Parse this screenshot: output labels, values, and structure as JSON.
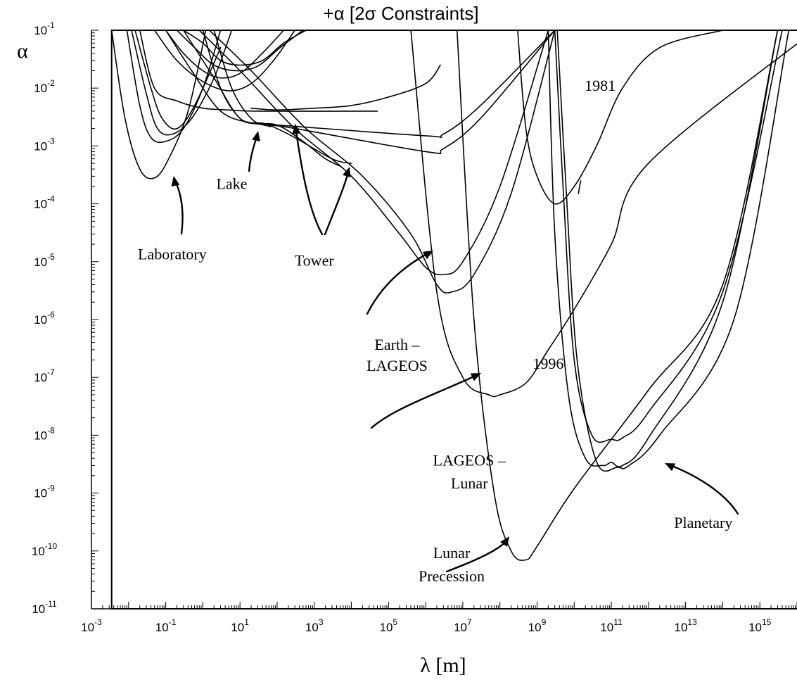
{
  "chart_data": {
    "type": "line",
    "title": "+α [2σ Constraints]",
    "xlabel": "λ [m]",
    "ylabel": "α",
    "x_scale": "log",
    "y_scale": "log",
    "xlim": [
      0.001,
      1e+16
    ],
    "ylim": [
      1e-11,
      0.1
    ],
    "grid": false,
    "x_ticks": [
      {
        "base": "10",
        "exp": "-3"
      },
      {
        "base": "10",
        "exp": "-1"
      },
      {
        "base": "10",
        "exp": "1"
      },
      {
        "base": "10",
        "exp": "3"
      },
      {
        "base": "10",
        "exp": "5"
      },
      {
        "base": "10",
        "exp": "7"
      },
      {
        "base": "10",
        "exp": "9"
      },
      {
        "base": "10",
        "exp": "11"
      },
      {
        "base": "10",
        "exp": "13"
      },
      {
        "base": "10",
        "exp": "15"
      }
    ],
    "y_ticks": [
      {
        "base": "10",
        "exp": "-1"
      },
      {
        "base": "10",
        "exp": "-2"
      },
      {
        "base": "10",
        "exp": "-3"
      },
      {
        "base": "10",
        "exp": "-4"
      },
      {
        "base": "10",
        "exp": "-5"
      },
      {
        "base": "10",
        "exp": "-6"
      },
      {
        "base": "10",
        "exp": "-7"
      },
      {
        "base": "10",
        "exp": "-8"
      },
      {
        "base": "10",
        "exp": "-9"
      },
      {
        "base": "10",
        "exp": "-10"
      },
      {
        "base": "10",
        "exp": "-11"
      }
    ],
    "series": [
      {
        "x": [
          0.0035,
          0.008,
          0.02,
          0.05,
          0.12,
          0.4,
          1.2
        ],
        "y": [
          0.1,
          0.003,
          0.0004,
          0.00028,
          0.0006,
          0.004,
          0.1
        ]
      },
      {
        "x": [
          0.009,
          0.02,
          0.04,
          0.1,
          0.3,
          1,
          3
        ],
        "y": [
          0.1,
          0.005,
          0.0014,
          0.0012,
          0.002,
          0.01,
          0.1
        ]
      },
      {
        "x": [
          0.012,
          0.03,
          0.06,
          0.15,
          0.5,
          2,
          6
        ],
        "y": [
          0.1,
          0.008,
          0.002,
          0.0016,
          0.003,
          0.015,
          0.1
        ]
      },
      {
        "x": [
          0.015,
          0.04,
          0.08,
          0.2,
          0.6,
          3
        ],
        "y": [
          0.1,
          0.01,
          0.003,
          0.002,
          0.005,
          0.05
        ]
      },
      {
        "x": [
          0.02,
          0.05,
          0.2,
          1,
          5,
          30,
          50000
        ],
        "y": [
          0.1,
          0.01,
          0.006,
          0.0045,
          0.0042,
          0.004,
          0.004
        ]
      },
      {
        "x": [
          0.05,
          0.2,
          1,
          5,
          20,
          80,
          300
        ],
        "y": [
          0.1,
          0.03,
          0.013,
          0.009,
          0.012,
          0.03,
          0.1
        ]
      },
      {
        "x": [
          0.1,
          0.3,
          1,
          3,
          10,
          40,
          150
        ],
        "y": [
          0.1,
          0.04,
          0.02,
          0.015,
          0.018,
          0.04,
          0.1
        ]
      },
      {
        "x": [
          0.2,
          0.6,
          2,
          8,
          30,
          120,
          500
        ],
        "y": [
          0.1,
          0.05,
          0.025,
          0.02,
          0.024,
          0.05,
          0.1
        ]
      },
      {
        "x": [
          0.3,
          1,
          3,
          10,
          40,
          150,
          600
        ],
        "y": [
          0.1,
          0.06,
          0.03,
          0.025,
          0.03,
          0.06,
          0.1
        ]
      },
      {
        "x": [
          20,
          100,
          1000,
          10000,
          100000,
          1000000,
          2500000
        ],
        "y": [
          0.0045,
          0.0042,
          0.0045,
          0.005,
          0.007,
          0.012,
          0.025
        ]
      },
      {
        "x": [
          0.1,
          0.5,
          3,
          20,
          100,
          500,
          2000,
          5000
        ],
        "y": [
          0.1,
          0.02,
          0.004,
          0.0025,
          0.0023,
          0.0012,
          0.0006,
          0.00045
        ]
      },
      {
        "x": [
          0.3,
          2,
          10,
          50,
          300,
          3000,
          10000
        ],
        "y": [
          0.1,
          0.015,
          0.003,
          0.0024,
          0.0014,
          0.0006,
          0.0005
        ]
      },
      {
        "x": [
          1,
          3,
          10,
          30,
          100,
          1000000,
          3000000,
          30000000,
          3000000000
        ],
        "y": [
          0.1,
          0.01,
          0.003,
          0.0024,
          0.0023,
          0.0015,
          0.0016,
          0.005,
          0.1
        ]
      },
      {
        "x": [
          2,
          6,
          20,
          60,
          200,
          1000000,
          3000000,
          30000000,
          3000000000
        ],
        "y": [
          0.1,
          0.01,
          0.003,
          0.0022,
          0.0021,
          0.0008,
          0.0009,
          0.003,
          0.1
        ]
      },
      {
        "x": [
          0.8,
          10,
          300,
          10000,
          200000,
          1000000,
          3000000,
          10000000,
          100000000,
          2000000000
        ],
        "y": [
          0.1,
          0.02,
          0.002,
          0.0003,
          3e-05,
          8e-06,
          6e-06,
          1e-05,
          0.0002,
          0.1
        ]
      },
      {
        "x": [
          1.5,
          20,
          600,
          20000,
          400000,
          2000000,
          5000000,
          20000000,
          200000000,
          3000000000
        ],
        "y": [
          0.1,
          0.02,
          0.002,
          0.0003,
          3e-05,
          4e-06,
          3e-06,
          6e-06,
          0.00015,
          0.1
        ]
      },
      {
        "x": [
          400000,
          2000000,
          10000000,
          50000000,
          100000000,
          500000000,
          2000000000,
          10000000000,
          100000000000,
          1000000000000,
          3e+16
        ],
        "y": [
          0.1,
          3e-06,
          1e-07,
          5e-08,
          5e-08,
          8e-08,
          3e-07,
          1.5e-06,
          2e-05,
          0.0005,
          0.1
        ]
      },
      {
        "x": [
          7000000,
          20000000,
          70000000,
          200000000,
          500000000,
          1000000000,
          10000000000,
          1000000000000,
          100000000000000,
          3000000000000000.0
        ],
        "y": [
          0.1,
          1e-06,
          1e-09,
          1e-10,
          7e-11,
          1.2e-10,
          1.2e-09,
          6e-08,
          4e-06,
          0.1
        ]
      },
      {
        "x": [
          300000000,
          500000000,
          1000000000,
          3000000000,
          10000000000,
          40000000000,
          200000000000,
          2000000000000,
          100000000000000
        ],
        "y": [
          0.1,
          0.002,
          0.0003,
          0.0001,
          0.0002,
          0.001,
          0.01,
          0.05,
          0.1
        ]
      },
      {
        "x": [
          2000000000,
          3000000000,
          7000000000,
          20000000000,
          60000000000,
          100000000000,
          200000000000,
          1000000000000,
          100000000000000,
          3000000000000000.0
        ],
        "y": [
          0.1,
          3e-05,
          5e-08,
          4e-09,
          3e-09,
          3.4e-09,
          3e-09,
          9e-09,
          2e-06,
          0.1
        ]
      },
      {
        "x": [
          3000000000,
          5000000000,
          10000000000,
          30000000000,
          100000000000,
          200000000000,
          1000000000000,
          100000000000000,
          4000000000000000.0
        ],
        "y": [
          0.1,
          0.0002,
          2e-07,
          1e-08,
          8.5e-09,
          9e-09,
          2.5e-08,
          3e-06,
          0.1
        ]
      },
      {
        "x": [
          3500000000,
          6000000000,
          12000000000,
          40000000000,
          150000000000,
          300000000000,
          2000000000000,
          200000000000000,
          6000000000000000.0
        ],
        "y": [
          0.1,
          0.0002,
          2e-07,
          3.5e-09,
          2.8e-09,
          3e-09,
          1e-08,
          1e-06,
          0.1
        ]
      },
      {
        "x": [
          13000000000,
          14000000000,
          15000000000
        ],
        "y": [
          0.00015,
          0.0002,
          0.00025
        ]
      }
    ],
    "annotations": [
      {
        "text": "Laboratory",
        "x": 0.15,
        "y": 1.1e-05
      },
      {
        "text": "Lake",
        "x": 6,
        "y": 0.00018
      },
      {
        "text": "Tower",
        "x": 1000,
        "y": 8.5e-06
      },
      {
        "text": "Earth –",
        "x": 170000,
        "y": 3e-07
      },
      {
        "text": "LAGEOS",
        "x": 170000,
        "y": 1.3e-07
      },
      {
        "text": "1981",
        "x": 50000000000,
        "y": 0.009
      },
      {
        "text": "1996",
        "x": 2000000000,
        "y": 1.4e-07
      },
      {
        "text": "LAGEOS –",
        "x": 15000000,
        "y": 3e-09
      },
      {
        "text": "Lunar",
        "x": 15000000,
        "y": 1.2e-09
      },
      {
        "text": "Lunar",
        "x": 5000000,
        "y": 7.5e-11
      },
      {
        "text": "Precession",
        "x": 5000000,
        "y": 3e-11
      },
      {
        "text": "Planetary",
        "x": 30000000000000,
        "y": 2.5e-10
      }
    ]
  }
}
